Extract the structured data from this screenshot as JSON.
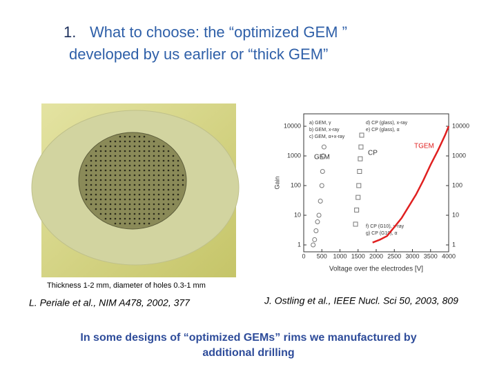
{
  "title": {
    "number": "1.",
    "line1": "What to choose: the “optimized GEM ”",
    "line2": "developed by us earlier or “thick GEM”"
  },
  "photo": {
    "caption": "Thickness 1-2 mm, diameter of holes 0.3-1 mm",
    "citation": "L. Periale et al., NIM A478, 2002, 377"
  },
  "plot": {
    "ylabel": "Gain",
    "xlabel": "Voltage over the electrodes [V]",
    "xlim": [
      0,
      4000
    ],
    "xticks": [
      0,
      500,
      1000,
      1500,
      2000,
      2500,
      3000,
      3500,
      4000
    ],
    "ylim": [
      1,
      10000
    ],
    "yticks": [
      1,
      10,
      100,
      1000,
      10000
    ],
    "log_y": true,
    "legend": [
      "a) GEM, γ",
      "b) GEM, x-ray",
      "c) GEM, α+x-ray",
      "d) CP (glass), x-ray",
      "e) CP (glass), α",
      "f) CP (G10), x-ray",
      "g) CP (G10), α"
    ],
    "annotations": [
      "GEM",
      "CP",
      "TGEM"
    ],
    "series": [
      {
        "color": "#777777",
        "marker": "circle",
        "x": [
          260,
          300,
          340,
          380,
          420,
          460,
          500,
          520,
          540,
          560
        ],
        "y": [
          1,
          1.5,
          3,
          6,
          10,
          30,
          100,
          300,
          1000,
          2000
        ]
      },
      {
        "color": "#777777",
        "marker": "square",
        "x": [
          1430,
          1460,
          1500,
          1520,
          1540,
          1560,
          1580,
          1600
        ],
        "y": [
          5,
          15,
          40,
          100,
          300,
          800,
          2000,
          5000
        ]
      },
      {
        "color": "#e02020",
        "marker": "line",
        "x": [
          1900,
          2100,
          2300,
          2500,
          2700,
          2900,
          3100,
          3300,
          3500,
          3700,
          3900,
          4000
        ],
        "y": [
          1.2,
          1.5,
          2,
          4,
          8,
          20,
          50,
          150,
          500,
          1500,
          5000,
          10000
        ]
      }
    ],
    "citation": "J. Ostling et al., IEEE Nucl. Sci 50, 2003, 809"
  },
  "footer": {
    "line1": "In some designs of “optimized GEMs” rims we manufactured by",
    "line2": "additional drilling"
  }
}
